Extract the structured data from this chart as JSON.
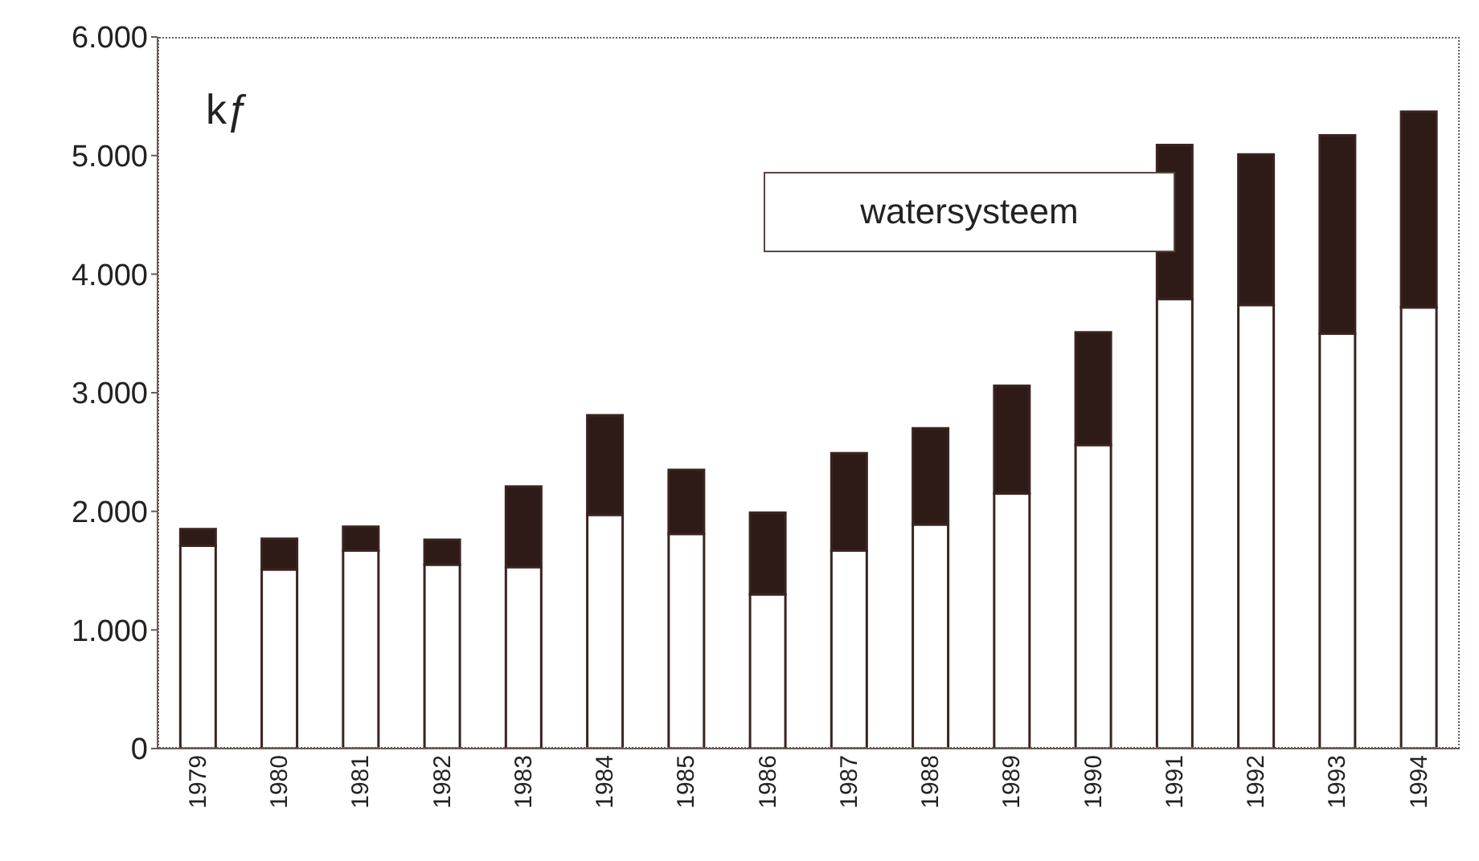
{
  "chart_data": {
    "type": "bar",
    "stacked": true,
    "ylabel": "kƒ",
    "annotations": [
      "watersysteem"
    ],
    "categories": [
      "1979",
      "1980",
      "1981",
      "1982",
      "1983",
      "1984",
      "1985",
      "1986",
      "1987",
      "1988",
      "1989",
      "1990",
      "1991",
      "1992",
      "1993",
      "1994"
    ],
    "series": [
      {
        "color": "#ffffff",
        "values": [
          1710,
          1510,
          1670,
          1550,
          1530,
          1970,
          1810,
          1300,
          1670,
          1890,
          2150,
          2560,
          3790,
          3740,
          3500,
          3720
        ]
      },
      {
        "color": "#2e1a17",
        "values": [
          140,
          260,
          200,
          210,
          680,
          840,
          540,
          690,
          820,
          810,
          910,
          950,
          1300,
          1270,
          1670,
          1650
        ]
      }
    ],
    "ylim": [
      0,
      6000
    ],
    "yticks": [
      0,
      {
        "value": 1000,
        "label": "1.000"
      },
      {
        "value": 2000,
        "label": "2.000"
      },
      {
        "value": 3000,
        "label": "3.000"
      },
      {
        "value": 4000,
        "label": "4.000"
      },
      {
        "value": 5000,
        "label": "5.000"
      },
      {
        "value": 6000,
        "label": "6.000"
      }
    ]
  }
}
